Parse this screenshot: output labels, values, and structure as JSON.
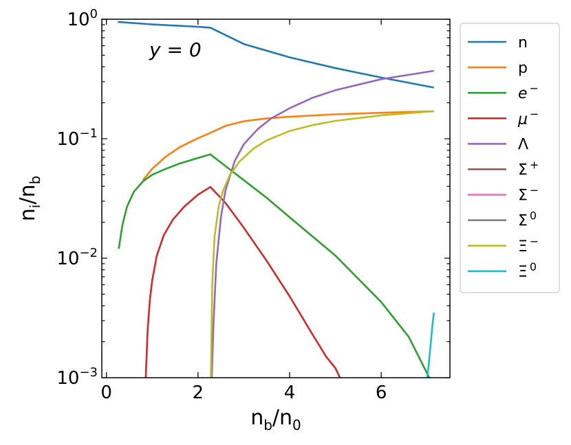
{
  "chart_data": {
    "type": "line",
    "xlabel_main": "n",
    "xlabel_sub1": "b",
    "xlabel_mid": "/n",
    "xlabel_sub2": "0",
    "ylabel_main": "n",
    "ylabel_sub1": "i",
    "ylabel_mid": "/n",
    "ylabel_sub2": "b",
    "yscale": "log",
    "xlim": [
      -0.1,
      7.5
    ],
    "ylim": [
      0.001,
      1
    ],
    "xticks": [
      0,
      2,
      4,
      6
    ],
    "xtick_labels": [
      "0",
      "2",
      "4",
      "6"
    ],
    "yticks": [
      0.001,
      0.01,
      0.1,
      1
    ],
    "ytick_labels": [
      {
        "base": "10",
        "exp": "−3"
      },
      {
        "base": "10",
        "exp": "−2"
      },
      {
        "base": "10",
        "exp": "−1"
      },
      {
        "base": "10",
        "exp": "0"
      }
    ],
    "annotation": {
      "text": "y = 0",
      "x": 1.05,
      "y": 0.6
    },
    "grid": false,
    "legend_placement": "outside-right",
    "series": [
      {
        "name": "n",
        "name_base": "n",
        "name_sup": "",
        "italic": false,
        "color": "#1f77b4",
        "x": [
          0.25,
          1.0,
          2.0,
          2.27,
          3.0,
          4.0,
          5.0,
          6.0,
          7.15
        ],
        "y": [
          0.95,
          0.905,
          0.865,
          0.85,
          0.62,
          0.48,
          0.39,
          0.325,
          0.268
        ]
      },
      {
        "name": "p",
        "name_base": "p",
        "name_sup": "",
        "italic": false,
        "color": "#ff7f0e",
        "x": [
          0.8,
          1.0,
          1.3,
          1.6,
          2.0,
          2.27,
          2.6,
          3.0,
          3.5,
          4.0,
          5.0,
          6.0,
          7.15
        ],
        "y": [
          0.045,
          0.056,
          0.071,
          0.085,
          0.101,
          0.112,
          0.128,
          0.14,
          0.148,
          0.153,
          0.16,
          0.165,
          0.17
        ]
      },
      {
        "name": "e⁻",
        "name_base": "e",
        "name_sup": "−",
        "italic": true,
        "color": "#2ca02c",
        "x": [
          0.27,
          0.35,
          0.45,
          0.6,
          0.8,
          1.0,
          1.3,
          1.6,
          2.0,
          2.27,
          2.6,
          3.0,
          3.5,
          4.0,
          5.0,
          6.0,
          6.6,
          7.05
        ],
        "y": [
          0.012,
          0.019,
          0.027,
          0.036,
          0.044,
          0.05,
          0.056,
          0.062,
          0.069,
          0.074,
          0.059,
          0.045,
          0.032,
          0.022,
          0.0105,
          0.0043,
          0.0022,
          0.001
        ]
      },
      {
        "name": "μ⁻",
        "name_base": "μ",
        "name_sup": "−",
        "italic": true,
        "color": "#d62728",
        "x": [
          0.86,
          0.9,
          0.95,
          1.0,
          1.1,
          1.25,
          1.45,
          1.7,
          2.0,
          2.27,
          2.6,
          3.0,
          3.5,
          4.0,
          4.5,
          4.8,
          5.0,
          5.1
        ],
        "y": [
          0.001,
          0.0025,
          0.0045,
          0.0065,
          0.0105,
          0.0155,
          0.021,
          0.027,
          0.034,
          0.0395,
          0.029,
          0.018,
          0.0095,
          0.0048,
          0.0023,
          0.0015,
          0.0012,
          0.001
        ]
      },
      {
        "name": "Λ",
        "name_base": "Λ",
        "name_sup": "",
        "italic": false,
        "color": "#9467bd",
        "x": [
          2.3,
          2.34,
          2.4,
          2.5,
          2.6,
          2.8,
          3.0,
          3.3,
          3.6,
          4.0,
          4.5,
          5.0,
          6.0,
          7.15
        ],
        "y": [
          0.001,
          0.003,
          0.009,
          0.022,
          0.037,
          0.065,
          0.09,
          0.12,
          0.148,
          0.18,
          0.22,
          0.255,
          0.315,
          0.37
        ]
      },
      {
        "name": "Σ⁺",
        "name_base": "Σ",
        "name_sup": "+",
        "italic": false,
        "color": "#8c564b",
        "x": [],
        "y": []
      },
      {
        "name": "Σ⁻",
        "name_base": "Σ",
        "name_sup": "−",
        "italic": false,
        "color": "#e377c2",
        "x": [],
        "y": []
      },
      {
        "name": "Σ⁰",
        "name_base": "Σ",
        "name_sup": "0",
        "italic": false,
        "color": "#7f7f7f",
        "x": [],
        "y": []
      },
      {
        "name": "Ξ⁻",
        "name_base": "Ξ",
        "name_sup": "−",
        "italic": false,
        "color": "#bcbd22",
        "x": [
          2.28,
          2.31,
          2.36,
          2.45,
          2.55,
          2.7,
          2.9,
          3.2,
          3.5,
          4.0,
          4.5,
          5.0,
          6.0,
          7.15
        ],
        "y": [
          0.001,
          0.006,
          0.015,
          0.027,
          0.037,
          0.05,
          0.064,
          0.082,
          0.097,
          0.116,
          0.13,
          0.141,
          0.157,
          0.17
        ]
      },
      {
        "name": "Ξ⁰",
        "name_base": "Ξ",
        "name_sup": "0",
        "italic": false,
        "color": "#17becf",
        "x": [
          7.0,
          7.03,
          7.06,
          7.09,
          7.12,
          7.15
        ],
        "y": [
          0.001,
          0.0012,
          0.0016,
          0.0021,
          0.0028,
          0.0035
        ]
      }
    ]
  }
}
